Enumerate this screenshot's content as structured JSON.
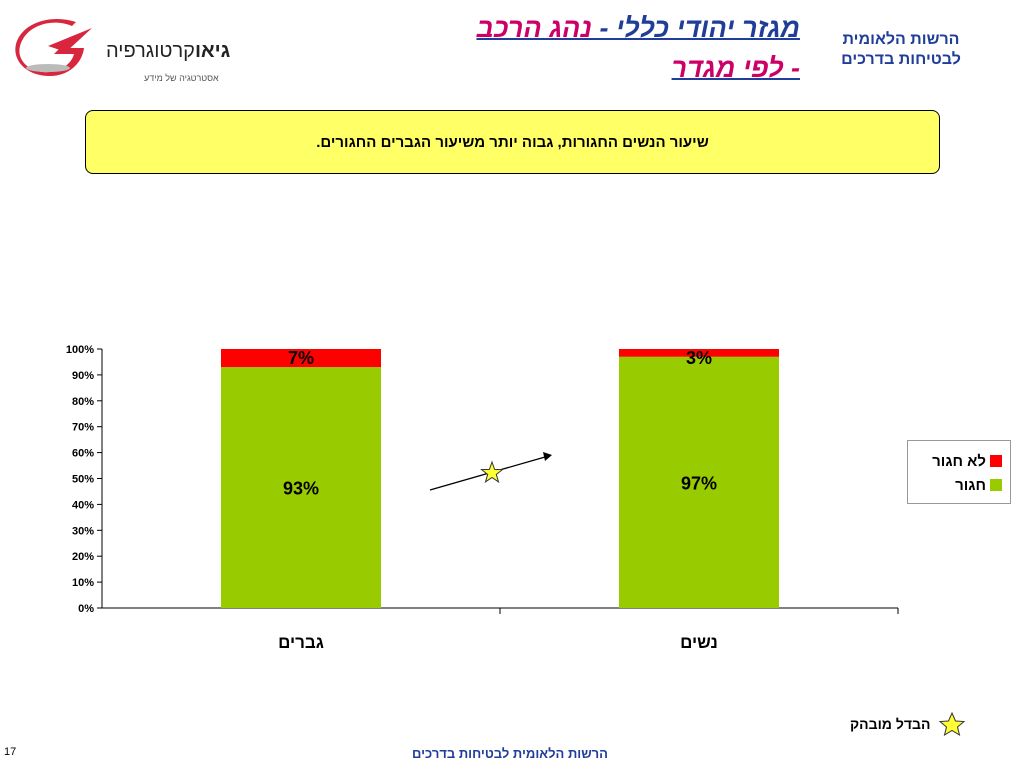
{
  "logo": {
    "brand_bold": "גיאו",
    "brand_rest": "קרטוגרפיה",
    "tagline": "אסטרטגיה של מידע"
  },
  "header": {
    "title_part1": "מגזר יהודי כללי - ",
    "title_part2": "נהג הרכב",
    "title_part3": "- לפי מגדר",
    "org_line1": "הרשות הלאומית",
    "org_line2": "לבטיחות בדרכים"
  },
  "banner": {
    "text": "שיעור הנשים החגורות, גבוה יותר משיעור הגברים החגורים."
  },
  "colors": {
    "belted": "#99cc00",
    "not_belted": "#ff0000",
    "title_blue": "#1f3d99",
    "title_pink": "#cc0066",
    "banner_bg": "#ffff66"
  },
  "chart_data": {
    "type": "bar",
    "stacked": true,
    "categories": [
      "גברים",
      "נשים"
    ],
    "series": [
      {
        "name": "חגור",
        "values": [
          93,
          97
        ],
        "labels": [
          "93%",
          "97%"
        ]
      },
      {
        "name": "לא חגור",
        "values": [
          7,
          3
        ],
        "labels": [
          "7%",
          "3%"
        ]
      }
    ],
    "ylim": [
      0,
      100
    ],
    "yticks": [
      "0%",
      "10%",
      "20%",
      "30%",
      "40%",
      "50%",
      "60%",
      "70%",
      "80%",
      "90%",
      "100%"
    ],
    "grid": false,
    "legend": "right"
  },
  "legend": {
    "not_belted": "לא חגור",
    "belted": "חגור"
  },
  "star_legend": {
    "label": "הבדל מובהק"
  },
  "footer": {
    "text": "הרשות הלאומית לבטיחות בדרכים",
    "page": "17"
  }
}
